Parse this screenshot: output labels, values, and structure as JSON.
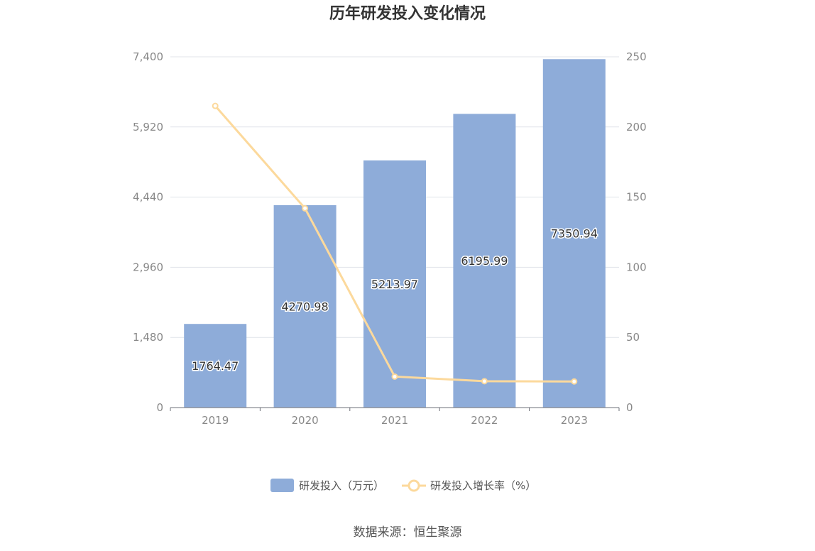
{
  "chart_data": {
    "type": "bar",
    "title": "历年研发投入变化情况",
    "categories": [
      "2019",
      "2020",
      "2021",
      "2022",
      "2023"
    ],
    "series": [
      {
        "name": "研发投入（万元）",
        "type": "bar",
        "axis": "left",
        "color": "#8eacd9",
        "values": [
          1764.47,
          4270.98,
          5213.97,
          6195.99,
          7350.94
        ],
        "labels": [
          "1764.47",
          "4270.98",
          "5213.97",
          "6195.99",
          "7350.94"
        ]
      },
      {
        "name": "研发投入增长率（%）",
        "type": "line",
        "axis": "right",
        "color": "#fcd99c",
        "values": [
          215.0,
          142.0,
          22.1,
          18.8,
          18.6
        ]
      }
    ],
    "y_left": {
      "ylim": [
        0,
        7400
      ],
      "ticks": [
        "0",
        "1,480",
        "2,960",
        "4,440",
        "5,920",
        "7,400"
      ]
    },
    "y_right": {
      "ylim": [
        0,
        250
      ],
      "ticks": [
        "0",
        "50",
        "100",
        "150",
        "200",
        "250"
      ]
    },
    "grid": true,
    "legend_position": "bottom"
  },
  "source_note": "数据来源：恒生聚源"
}
